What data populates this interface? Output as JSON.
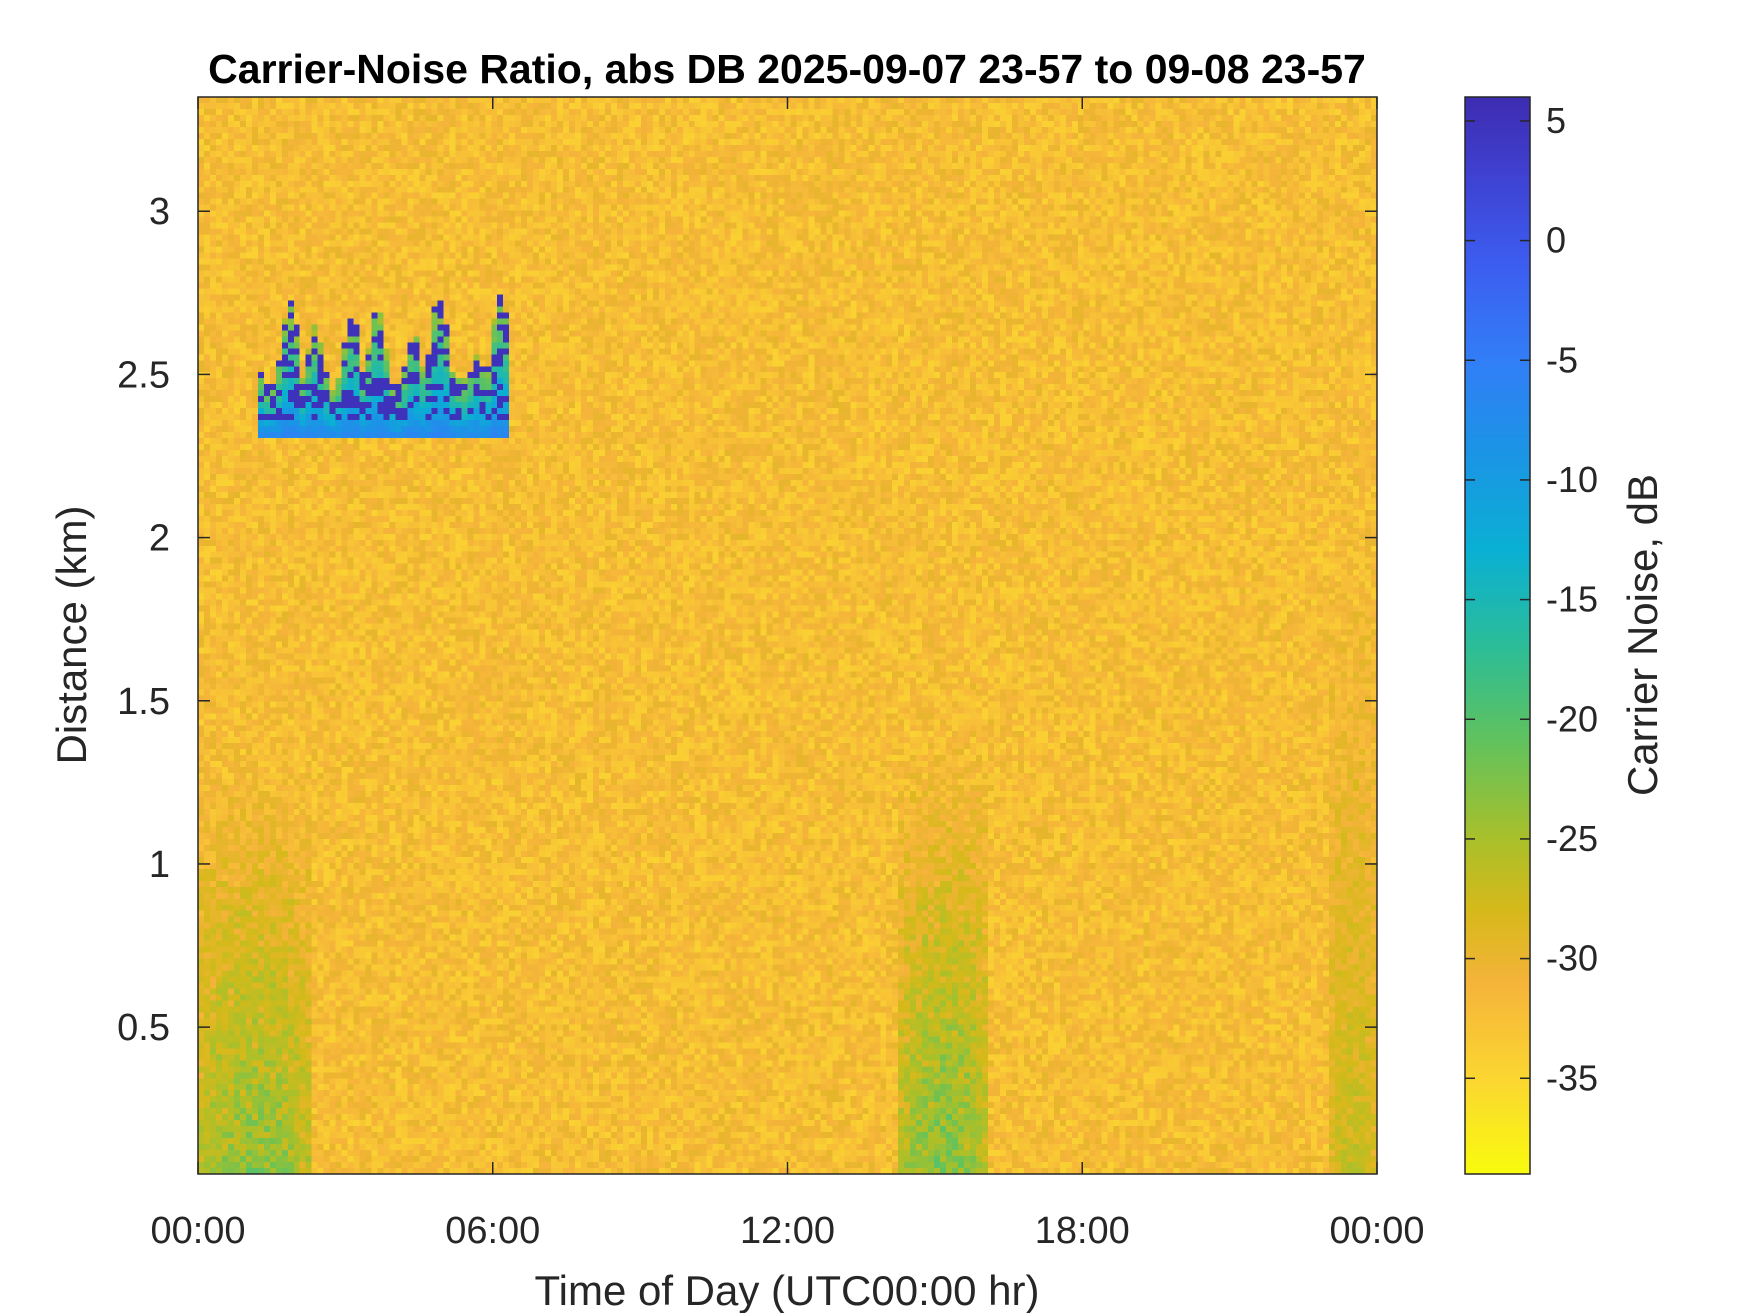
{
  "chart_data": {
    "type": "heatmap",
    "title": "Carrier-Noise Ratio, abs DB 2025-09-07 23-57 to 09-08 23-57",
    "xlabel": "Time of Day (UTC00:00 hr)",
    "ylabel": "Distance (km)",
    "xlim_hours": [
      0,
      24
    ],
    "ylim_km": [
      0.05,
      3.35
    ],
    "x_ticks": [
      {
        "hour": 0,
        "label": "00:00"
      },
      {
        "hour": 6,
        "label": "06:00"
      },
      {
        "hour": 12,
        "label": "12:00"
      },
      {
        "hour": 18,
        "label": "18:00"
      },
      {
        "hour": 24,
        "label": "00:00"
      }
    ],
    "y_ticks": [
      {
        "km": 0.5,
        "label": "0.5"
      },
      {
        "km": 1,
        "label": "1"
      },
      {
        "km": 1.5,
        "label": "1.5"
      },
      {
        "km": 2,
        "label": "2"
      },
      {
        "km": 2.5,
        "label": "2.5"
      },
      {
        "km": 3,
        "label": "3"
      }
    ],
    "colorbar": {
      "label": "Carrier Noise, dB",
      "range_db": [
        -39,
        6
      ],
      "ticks": [
        5,
        0,
        -5,
        -10,
        -15,
        -20,
        -25,
        -30,
        -35
      ],
      "tick_labels": [
        "5",
        "0",
        "-5",
        "-10",
        "-15",
        "-20",
        "-25",
        "-30",
        "-35"
      ],
      "colormap": "parula-reversed",
      "color_stops": [
        {
          "db": -39,
          "color": "#f9fb0e"
        },
        {
          "db": -35,
          "color": "#fbd631"
        },
        {
          "db": -31,
          "color": "#f5b33a"
        },
        {
          "db": -28,
          "color": "#d6b91a"
        },
        {
          "db": -25,
          "color": "#a9c02a"
        },
        {
          "db": -21,
          "color": "#62c25c"
        },
        {
          "db": -17,
          "color": "#2cbd97"
        },
        {
          "db": -13,
          "color": "#0ab0d3"
        },
        {
          "db": -9,
          "color": "#1a95e5"
        },
        {
          "db": -5,
          "color": "#327ef7"
        },
        {
          "db": -1,
          "color": "#3c5df0"
        },
        {
          "db": 3,
          "color": "#3f3fcf"
        },
        {
          "db": 6,
          "color": "#3d2cb0"
        }
      ]
    },
    "background_level_db": -32,
    "features": [
      {
        "desc": "cloud",
        "t_start_hours": 1.2,
        "t_end_hours": 6.3,
        "z_bottom_km": 2.3,
        "z_top_km": 2.75,
        "peak_db": 5
      },
      {
        "desc": "enhanced near-surface band",
        "t_start_hours": 0,
        "t_end_hours": 2.3,
        "z_bottom_km": 0.05,
        "z_top_km": 1.3,
        "peak_db": -20
      },
      {
        "desc": "enhanced band",
        "t_start_hours": 14.3,
        "t_end_hours": 16.1,
        "z_bottom_km": 0.05,
        "z_top_km": 1.35,
        "peak_db": -19
      },
      {
        "desc": "enhanced band",
        "t_start_hours": 23.0,
        "t_end_hours": 24,
        "z_bottom_km": 0.05,
        "z_top_km": 1.9,
        "peak_db": -25
      }
    ]
  }
}
